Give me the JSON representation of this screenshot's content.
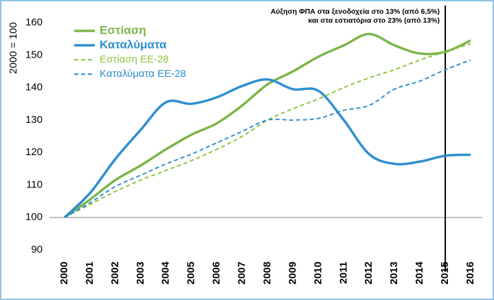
{
  "chart_data": {
    "type": "line",
    "y_label": "2000 = 100",
    "annotation": [
      "Αύξηση ΦΠΑ στα ξενοδοχεία στο 13% (από 6,5%)",
      "και στα εστιατόρια στο 23% (από 13%)"
    ],
    "vline": "2015",
    "categories": [
      "2000",
      "2001",
      "2002",
      "2003",
      "2004",
      "2005",
      "2006",
      "2007",
      "2008",
      "2009",
      "2010",
      "2011",
      "2012",
      "2013",
      "2014",
      "2015",
      "2016"
    ],
    "ylim": [
      90,
      160
    ],
    "yticks": [
      90,
      100,
      110,
      120,
      130,
      140,
      150,
      160
    ],
    "baseline": 100,
    "legend": "top-left",
    "series": [
      {
        "name": "Εστίαση",
        "color": "#7ab648",
        "dash": false,
        "values": [
          100,
          105.5,
          111.5,
          116,
          121,
          125.5,
          129,
          134.5,
          141,
          145,
          149.5,
          153,
          156.5,
          153,
          150.5,
          151,
          154.5
        ]
      },
      {
        "name": "Καταλύματα",
        "color": "#2e8fcf",
        "dash": false,
        "values": [
          100,
          107.5,
          118,
          127,
          135.5,
          135,
          137,
          140.5,
          142.5,
          139.5,
          139,
          130,
          119.5,
          116.5,
          117.2,
          119,
          119.3
        ]
      },
      {
        "name": "Εστίαση ΕΕ-28",
        "color": "#8dc63f",
        "dash": true,
        "values": [
          100,
          104,
          108,
          111.5,
          114.5,
          117.5,
          121,
          125,
          130,
          133.5,
          136.5,
          140,
          143,
          145.5,
          148.5,
          151,
          153.5
        ]
      },
      {
        "name": "Καταλύματα ΕΕ-28",
        "color": "#2e8fcf",
        "dash": true,
        "values": [
          100,
          104.5,
          109.5,
          113,
          116.5,
          119.5,
          123,
          126.5,
          130,
          130,
          130.5,
          133,
          134.5,
          139.5,
          142,
          145.5,
          148.5
        ]
      }
    ]
  }
}
